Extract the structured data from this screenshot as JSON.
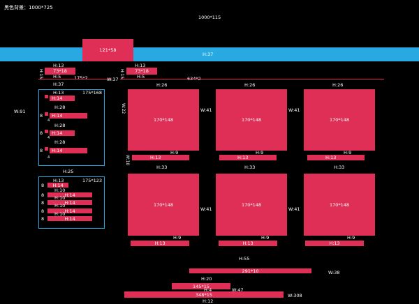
{
  "header": {
    "bg_note": "黑色背景：1000*725",
    "canvas_size": "1000*115",
    "block_size": "121*58",
    "bar_height": "H:37"
  },
  "nav": {
    "left_h": "H:13",
    "left_box": "73*18",
    "left_v": "H:15",
    "left_h5": "H:5",
    "divider_left": "175*2",
    "right_h": "H:13",
    "right_box": "73*18",
    "right_v": "H:15",
    "right_h5": "H:5",
    "w37": "W:37",
    "divider_right": "634*2"
  },
  "sidebar": {
    "h37": "H:37",
    "w91": "W:91",
    "panel1_h": "H:13",
    "panel1_size": "175*168",
    "panel1_items": [
      "H:14",
      "H:14",
      "H:14",
      "H:14"
    ],
    "panel1_gaps": [
      "H:28",
      "H:28",
      "H:28"
    ],
    "left_marks": [
      "8",
      "8",
      "8",
      "8"
    ],
    "small_marks": [
      "4",
      "4",
      "4"
    ],
    "h25": "H:25",
    "panel2_h": "H:13",
    "panel2_size": "175*123",
    "panel2_items": [
      "H:14",
      "H:14",
      "H:14",
      "H:14",
      "H:14"
    ],
    "panel2_gaps": [
      "H:10",
      "H:10",
      "H:10",
      "H:10"
    ],
    "panel2_marks": [
      "8",
      "8",
      "8",
      "8",
      "8"
    ]
  },
  "grid": {
    "w22": "W:22",
    "w10": "W:10",
    "row1": {
      "h26": [
        "H:26",
        "H:26",
        "H:26"
      ],
      "cards": [
        "170*148",
        "170*148",
        "170*148"
      ],
      "h9": [
        "H:9",
        "H:9",
        "H:9"
      ],
      "captions": [
        "H:13",
        "H:13",
        "H:13"
      ],
      "w41": [
        "W:41",
        "W:41"
      ]
    },
    "row2": {
      "h33": [
        "H:33",
        "H:33",
        "H:33"
      ],
      "cards": [
        "170*148",
        "170*148",
        "170*148"
      ],
      "h9": [
        "H:9",
        "H:9",
        "H:9"
      ],
      "captions": [
        "H:13",
        "H:13",
        "H:13"
      ],
      "w41": [
        "W:41",
        "W:41"
      ]
    }
  },
  "footer": {
    "h55": "H:55",
    "bar1": "291*10",
    "w38": "W:38",
    "h20": "H:20",
    "bar2": "145*15",
    "h4": "H:4",
    "w47": "W:47",
    "bar3": "348*15",
    "w308": "W:308",
    "h12": "H:12"
  }
}
